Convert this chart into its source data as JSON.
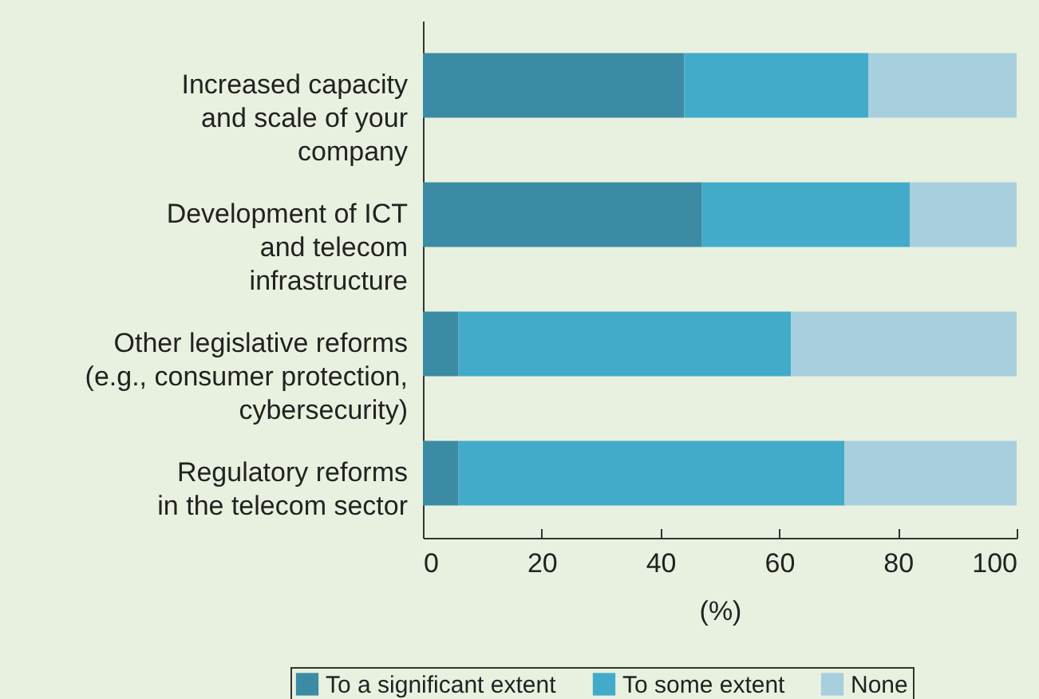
{
  "chart_data": {
    "type": "bar",
    "orientation": "horizontal",
    "stacked": true,
    "categories": [
      "Increased capacity\nand scale of your\ncompany",
      "Development of ICT\nand telecom\ninfrastructure",
      "Other legislative reforms\n(e.g., consumer protection,\ncybersecurity)",
      "Regulatory reforms\nin the telecom sector"
    ],
    "series": [
      {
        "name": "To a significant extent",
        "color": "#3b8ba4",
        "values": [
          44,
          47,
          6,
          6
        ]
      },
      {
        "name": "To some extent",
        "color": "#42abc9",
        "values": [
          31,
          35,
          56,
          65
        ]
      },
      {
        "name": "None",
        "color": "#a8cfde",
        "values": [
          25,
          18,
          38,
          29
        ]
      }
    ],
    "xlim": [
      0,
      100
    ],
    "xticks": [
      0,
      20,
      40,
      60,
      80,
      100
    ],
    "xlabel": "(%)",
    "legend": "bottom",
    "grid": false
  }
}
